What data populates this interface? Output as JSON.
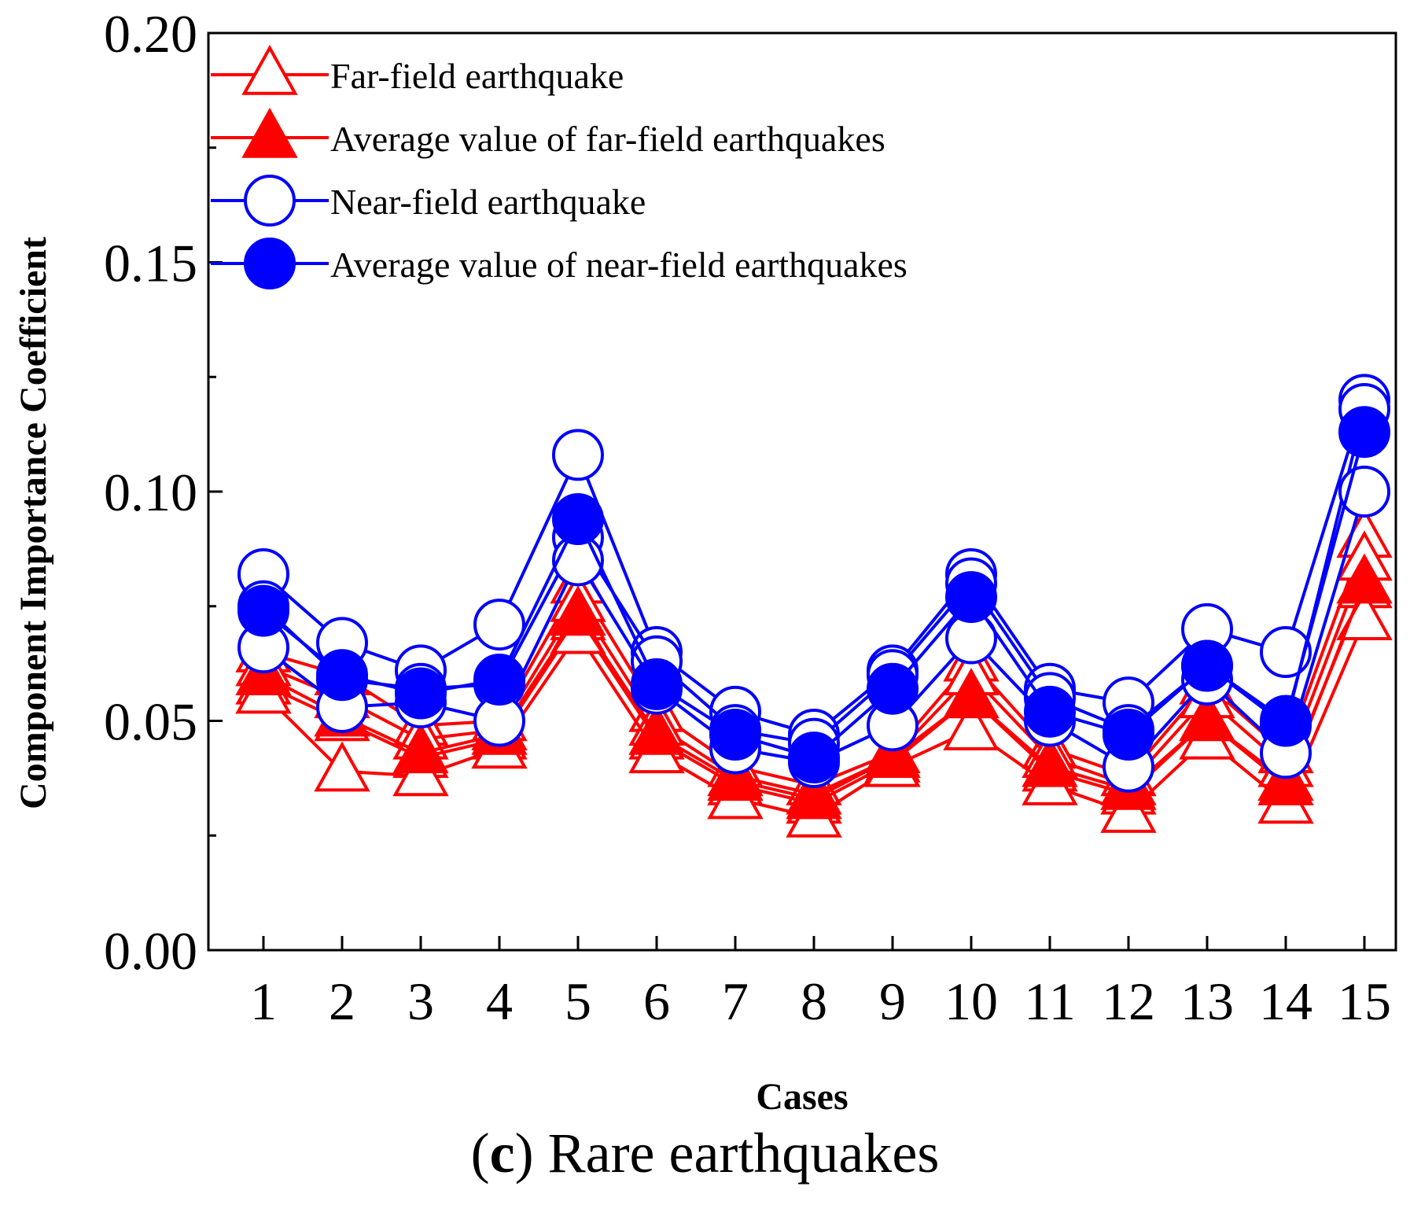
{
  "chart_data": {
    "type": "line",
    "title": "",
    "xlabel": "Cases",
    "ylabel": "Component Importance Coefficient",
    "ylim": [
      0.0,
      0.2
    ],
    "yticks": [
      "0.00",
      "0.05",
      "0.10",
      "0.15",
      "0.20"
    ],
    "categories": [
      "1",
      "2",
      "3",
      "4",
      "5",
      "6",
      "7",
      "8",
      "9",
      "10",
      "11",
      "12",
      "13",
      "14",
      "15"
    ],
    "legend": {
      "position": "top-left",
      "entries": [
        {
          "label": "Far-field earthquake",
          "marker": "triangle-open",
          "color": "#ff0000"
        },
        {
          "label": "Average value of far-field earthquakes",
          "marker": "triangle-filled",
          "color": "#ff0000"
        },
        {
          "label": "Near-field earthquake",
          "marker": "circle-open",
          "color": "#0000ff"
        },
        {
          "label": "Average value of near-field earthquakes",
          "marker": "circle-filled",
          "color": "#0000ff"
        }
      ]
    },
    "series": [
      {
        "name": "Far-field earthquake",
        "group": "far",
        "marker": "triangle-open",
        "color": "#ff0000",
        "values": [
          0.065,
          0.06,
          0.049,
          0.05,
          0.08,
          0.052,
          0.04,
          0.036,
          0.043,
          0.063,
          0.044,
          0.038,
          0.058,
          0.043,
          0.09
        ]
      },
      {
        "name": "Far-field earthquake",
        "group": "far",
        "marker": "triangle-open",
        "color": "#ff0000",
        "values": [
          0.062,
          0.055,
          0.046,
          0.048,
          0.076,
          0.049,
          0.038,
          0.034,
          0.042,
          0.06,
          0.042,
          0.036,
          0.055,
          0.04,
          0.085
        ]
      },
      {
        "name": "Far-field earthquake",
        "group": "far",
        "marker": "triangle-open",
        "color": "#ff0000",
        "values": [
          0.058,
          0.05,
          0.042,
          0.046,
          0.072,
          0.046,
          0.036,
          0.032,
          0.041,
          0.055,
          0.039,
          0.034,
          0.05,
          0.037,
          0.079
        ]
      },
      {
        "name": "Far-field earthquake",
        "group": "far",
        "marker": "triangle-open",
        "color": "#ff0000",
        "values": [
          0.056,
          0.039,
          0.038,
          0.044,
          0.069,
          0.043,
          0.033,
          0.029,
          0.04,
          0.048,
          0.036,
          0.03,
          0.046,
          0.032,
          0.072
        ]
      },
      {
        "name": "Average value of far-field earthquakes",
        "group": "far",
        "marker": "triangle-filled",
        "color": "#ff0000",
        "values": [
          0.06,
          0.051,
          0.043,
          0.047,
          0.073,
          0.047,
          0.037,
          0.033,
          0.042,
          0.055,
          0.04,
          0.035,
          0.05,
          0.036,
          0.08
        ]
      },
      {
        "name": "Near-field earthquake",
        "group": "near",
        "marker": "circle-open",
        "color": "#0000ff",
        "values": [
          0.082,
          0.067,
          0.061,
          0.071,
          0.108,
          0.065,
          0.052,
          0.047,
          0.061,
          0.082,
          0.057,
          0.054,
          0.07,
          0.065,
          0.12
        ]
      },
      {
        "name": "Near-field earthquake",
        "group": "near",
        "marker": "circle-open",
        "color": "#0000ff",
        "values": [
          0.075,
          0.059,
          0.057,
          0.058,
          0.09,
          0.063,
          0.048,
          0.045,
          0.06,
          0.08,
          0.055,
          0.048,
          0.062,
          0.049,
          0.118
        ]
      },
      {
        "name": "Near-field earthquake",
        "group": "near",
        "marker": "circle-open",
        "color": "#0000ff",
        "values": [
          0.066,
          0.053,
          0.054,
          0.05,
          0.085,
          0.057,
          0.044,
          0.041,
          0.049,
          0.068,
          0.05,
          0.04,
          0.059,
          0.043,
          0.1
        ]
      },
      {
        "name": "Average value of near-field earthquakes",
        "group": "near",
        "marker": "circle-filled",
        "color": "#0000ff",
        "values": [
          0.074,
          0.06,
          0.056,
          0.059,
          0.094,
          0.058,
          0.047,
          0.042,
          0.057,
          0.077,
          0.052,
          0.047,
          0.062,
          0.05,
          0.113
        ]
      }
    ]
  },
  "caption": {
    "label": "c",
    "text": "Rare earthquakes"
  }
}
